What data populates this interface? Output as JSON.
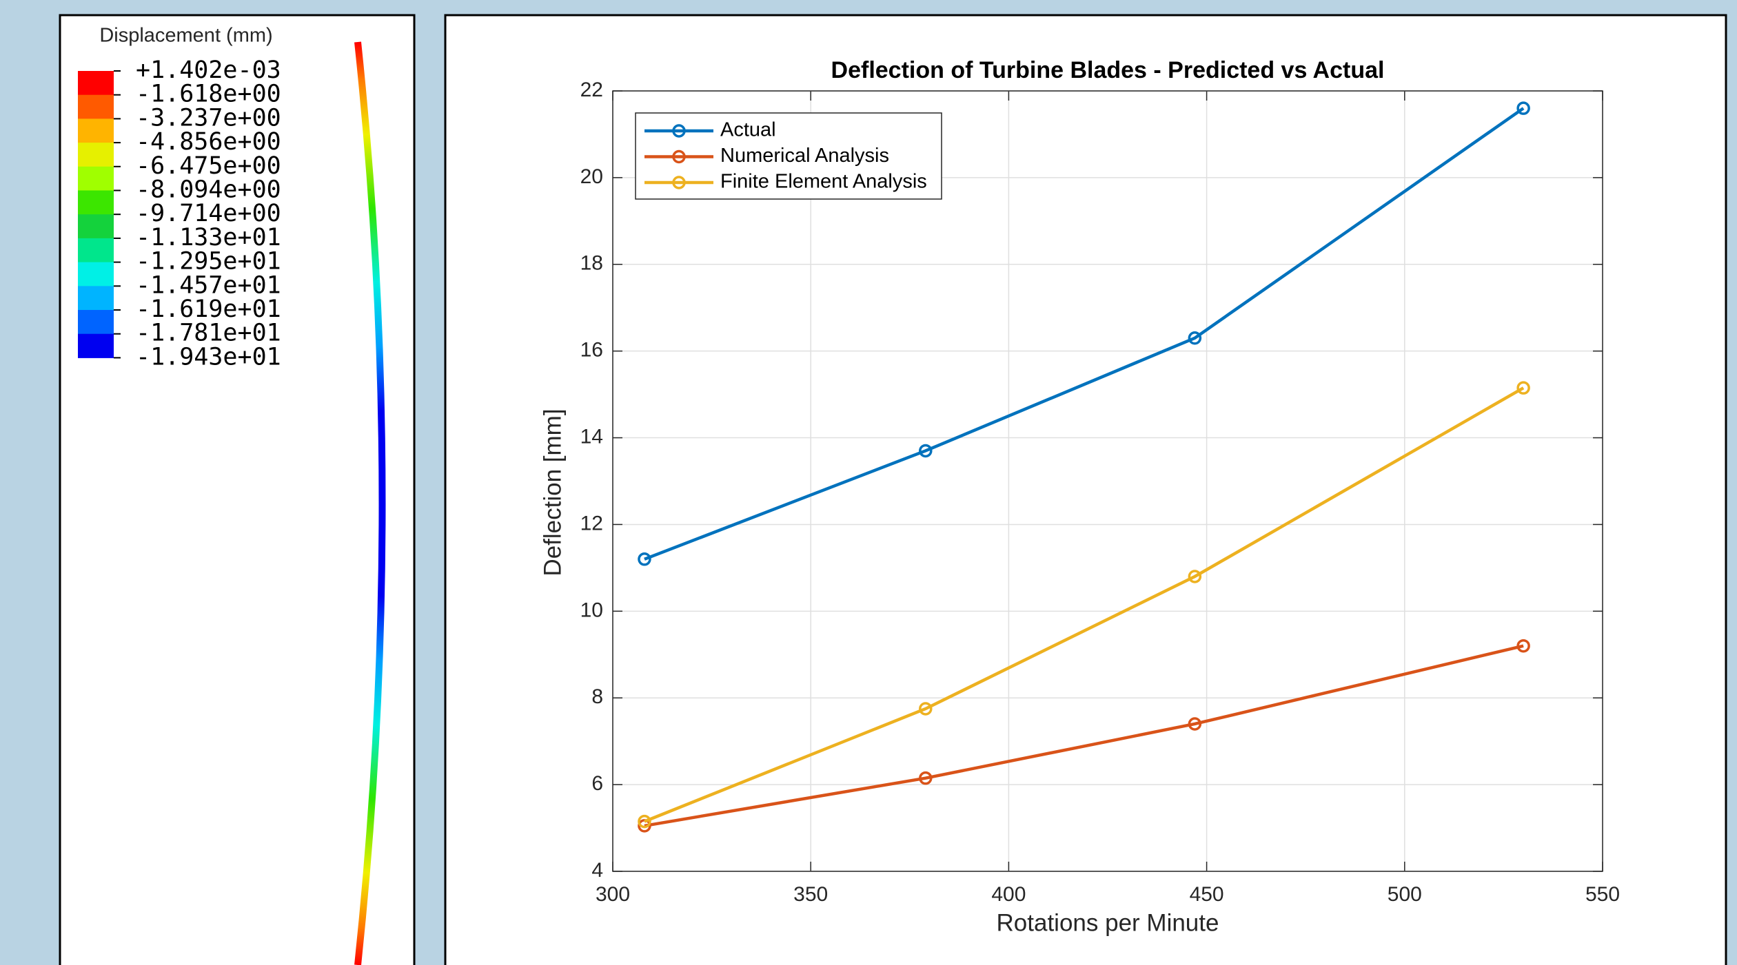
{
  "colorbar": {
    "title": "Displacement (mm)",
    "labels": [
      "+1.402e-03",
      "-1.618e+00",
      "-3.237e+00",
      "-4.856e+00",
      "-6.475e+00",
      "-8.094e+00",
      "-9.714e+00",
      "-1.133e+01",
      "-1.295e+01",
      "-1.457e+01",
      "-1.619e+01",
      "-1.781e+01",
      "-1.943e+01"
    ],
    "colors": [
      "#ff0000",
      "#ff5a00",
      "#ffb400",
      "#e6f000",
      "#a0ff00",
      "#3ce600",
      "#14d23c",
      "#00e68c",
      "#00f0e6",
      "#00b4ff",
      "#0064ff",
      "#0000f0"
    ]
  },
  "chart_data": {
    "type": "line",
    "title": "Deflection of Turbine Blades - Predicted vs Actual",
    "x_label": "Rotations per Minute",
    "y_label": "Deflection [mm]",
    "x": [
      308,
      379,
      447,
      530
    ],
    "series": [
      {
        "name": "Actual",
        "color": "#0072bd",
        "values": [
          11.2,
          13.7,
          16.3,
          21.6
        ]
      },
      {
        "name": "Numerical Analysis",
        "color": "#d95319",
        "values": [
          5.05,
          6.15,
          7.4,
          9.2
        ]
      },
      {
        "name": "Finite Element Analysis",
        "color": "#edb120",
        "values": [
          5.15,
          7.75,
          10.8,
          15.15
        ]
      }
    ],
    "xlim": [
      300,
      550
    ],
    "xticks": [
      300,
      350,
      400,
      450,
      500,
      550
    ],
    "ylim": [
      4,
      22
    ],
    "yticks": [
      4,
      6,
      8,
      10,
      12,
      14,
      16,
      18,
      20,
      22
    ],
    "grid": true,
    "legend": "upper left",
    "marker": "circle"
  }
}
